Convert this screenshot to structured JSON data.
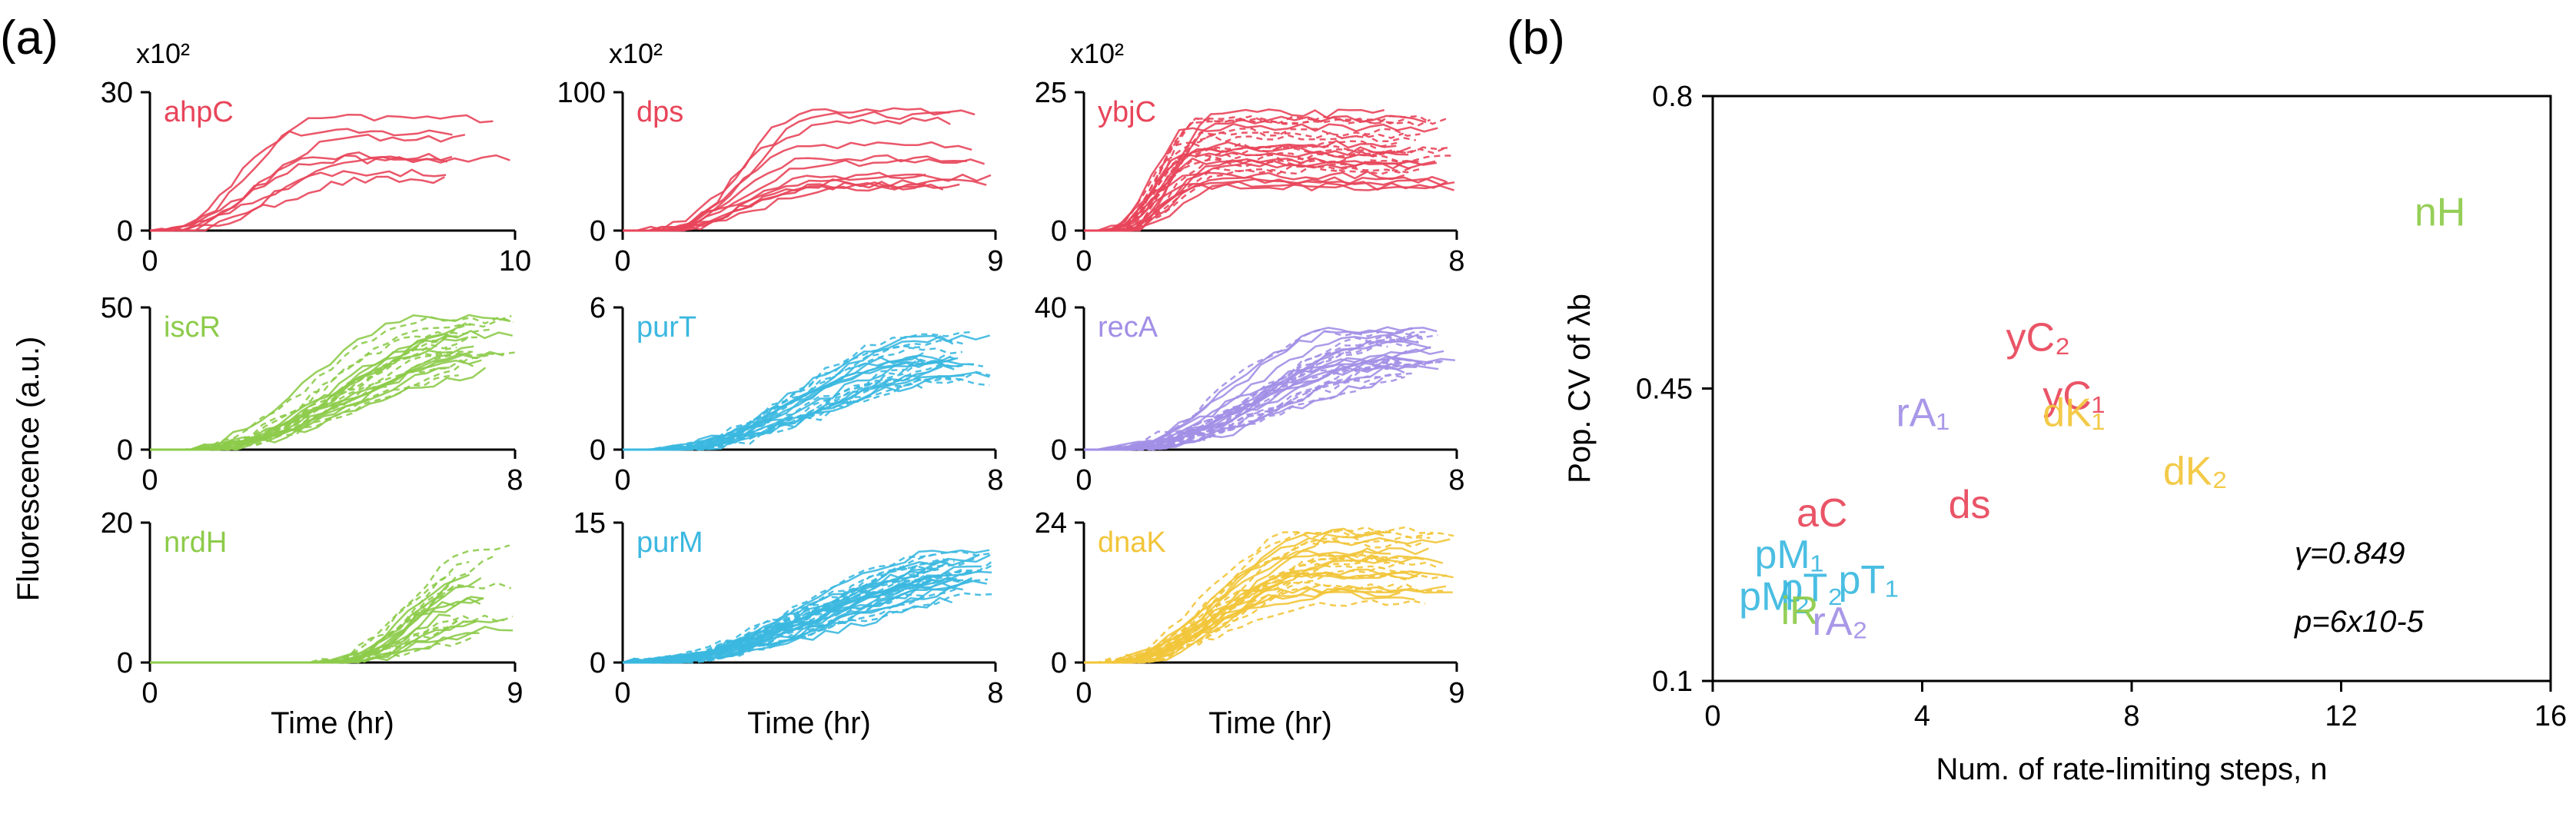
{
  "colors": {
    "red": "#e8455a",
    "green": "#8dcb4a",
    "blue": "#3bb8e0",
    "purple": "#a28fe6",
    "orange": "#f2c53a"
  },
  "panel_a": {
    "label": "(a)",
    "ylabel": "Fluorescence (a.u.)",
    "xlabel": "Time (hr)"
  },
  "panel_b": {
    "label": "(b)",
    "stat_gamma": "γ=0.849",
    "stat_p": "p=6x10-5"
  },
  "chart_data": [
    {
      "type": "line",
      "title": "ahpC",
      "color_key": "red",
      "scale_label": "x10²",
      "x_ticks": [
        "0",
        "10"
      ],
      "y_ticks": [
        "0",
        "30"
      ],
      "xlim": [
        0,
        10
      ],
      "ylim": [
        0,
        30
      ],
      "xlabel": "",
      "series_count": {
        "solid": 8,
        "dashed": 0
      }
    },
    {
      "type": "line",
      "title": "dps",
      "color_key": "red",
      "scale_label": "x10²",
      "x_ticks": [
        "0",
        "9"
      ],
      "y_ticks": [
        "0",
        "100"
      ],
      "xlim": [
        0,
        9
      ],
      "ylim": [
        0,
        100
      ],
      "xlabel": "",
      "series_count": {
        "solid": 12,
        "dashed": 0
      }
    },
    {
      "type": "line",
      "title": "ybjC",
      "color_key": "red",
      "scale_label": "x10²",
      "x_ticks": [
        "0",
        "8"
      ],
      "y_ticks": [
        "0",
        "25"
      ],
      "xlim": [
        0,
        8
      ],
      "ylim": [
        0,
        25
      ],
      "xlabel": "",
      "series_count": {
        "solid": 14,
        "dashed": 14
      }
    },
    {
      "type": "line",
      "title": "iscR",
      "color_key": "green",
      "scale_label": "",
      "x_ticks": [
        "0",
        "8"
      ],
      "y_ticks": [
        "0",
        "50"
      ],
      "xlim": [
        0,
        8
      ],
      "ylim": [
        0,
        50
      ],
      "xlabel": "",
      "series_count": {
        "solid": 12,
        "dashed": 12
      }
    },
    {
      "type": "line",
      "title": "purT",
      "color_key": "blue",
      "scale_label": "",
      "x_ticks": [
        "0",
        "8"
      ],
      "y_ticks": [
        "0",
        "6"
      ],
      "xlim": [
        0,
        8
      ],
      "ylim": [
        0,
        6
      ],
      "xlabel": "",
      "series_count": {
        "solid": 12,
        "dashed": 12
      }
    },
    {
      "type": "line",
      "title": "recA",
      "color_key": "purple",
      "scale_label": "",
      "x_ticks": [
        "0",
        "8"
      ],
      "y_ticks": [
        "0",
        "40"
      ],
      "xlim": [
        0,
        8
      ],
      "ylim": [
        0,
        40
      ],
      "xlabel": "",
      "series_count": {
        "solid": 14,
        "dashed": 14
      }
    },
    {
      "type": "line",
      "title": "nrdH",
      "color_key": "green",
      "scale_label": "",
      "x_ticks": [
        "0",
        "9"
      ],
      "y_ticks": [
        "0",
        "20"
      ],
      "xlim": [
        0,
        9
      ],
      "ylim": [
        0,
        20
      ],
      "xlabel": "Time (hr)",
      "series_count": {
        "solid": 12,
        "dashed": 10
      }
    },
    {
      "type": "line",
      "title": "purM",
      "color_key": "blue",
      "scale_label": "",
      "x_ticks": [
        "0",
        "8"
      ],
      "y_ticks": [
        "0",
        "15"
      ],
      "xlim": [
        0,
        8
      ],
      "ylim": [
        0,
        15
      ],
      "xlabel": "Time (hr)",
      "series_count": {
        "solid": 18,
        "dashed": 18
      }
    },
    {
      "type": "line",
      "title": "dnaK",
      "color_key": "orange",
      "scale_label": "",
      "x_ticks": [
        "0",
        "9"
      ],
      "y_ticks": [
        "0",
        "24"
      ],
      "xlim": [
        0,
        9
      ],
      "ylim": [
        0,
        24
      ],
      "xlabel": "Time (hr)",
      "series_count": {
        "solid": 14,
        "dashed": 14
      }
    },
    {
      "type": "scatter",
      "title": "",
      "xlabel": "Num. of rate-limiting steps, n",
      "ylabel": "Pop. CV of λb",
      "xlim": [
        0,
        16
      ],
      "ylim": [
        0.1,
        0.8
      ],
      "x_ticks": [
        0,
        4,
        8,
        12,
        16
      ],
      "y_ticks": [
        0.1,
        0.45,
        0.8
      ],
      "x_tick_labels": [
        "0",
        "4",
        "8",
        "12",
        "16"
      ],
      "y_tick_labels": [
        "0.1",
        "0.45",
        "0.8"
      ],
      "points": [
        {
          "label": "nH",
          "x": 13.4,
          "y": 0.645,
          "color_key": "green"
        },
        {
          "label": "yC₂",
          "x": 5.6,
          "y": 0.495,
          "color_key": "red"
        },
        {
          "label": "yC₁",
          "x": 6.3,
          "y": 0.425,
          "color_key": "red"
        },
        {
          "label": "dK₁",
          "x": 6.3,
          "y": 0.405,
          "color_key": "orange"
        },
        {
          "label": "rA₁",
          "x": 3.5,
          "y": 0.405,
          "color_key": "purple"
        },
        {
          "label": "dK₂",
          "x": 8.6,
          "y": 0.335,
          "color_key": "orange"
        },
        {
          "label": "ds",
          "x": 4.5,
          "y": 0.295,
          "color_key": "red"
        },
        {
          "label": "aC",
          "x": 1.6,
          "y": 0.285,
          "color_key": "red"
        },
        {
          "label": "pM₁",
          "x": 0.8,
          "y": 0.235,
          "color_key": "blue"
        },
        {
          "label": "pT₁",
          "x": 2.4,
          "y": 0.205,
          "color_key": "blue"
        },
        {
          "label": "pM₂",
          "x": 0.5,
          "y": 0.185,
          "color_key": "blue"
        },
        {
          "label": "pT₂",
          "x": 1.3,
          "y": 0.195,
          "color_key": "blue"
        },
        {
          "label": "iR",
          "x": 1.3,
          "y": 0.168,
          "color_key": "green"
        },
        {
          "label": "rA₂",
          "x": 1.9,
          "y": 0.155,
          "color_key": "purple"
        }
      ]
    }
  ]
}
